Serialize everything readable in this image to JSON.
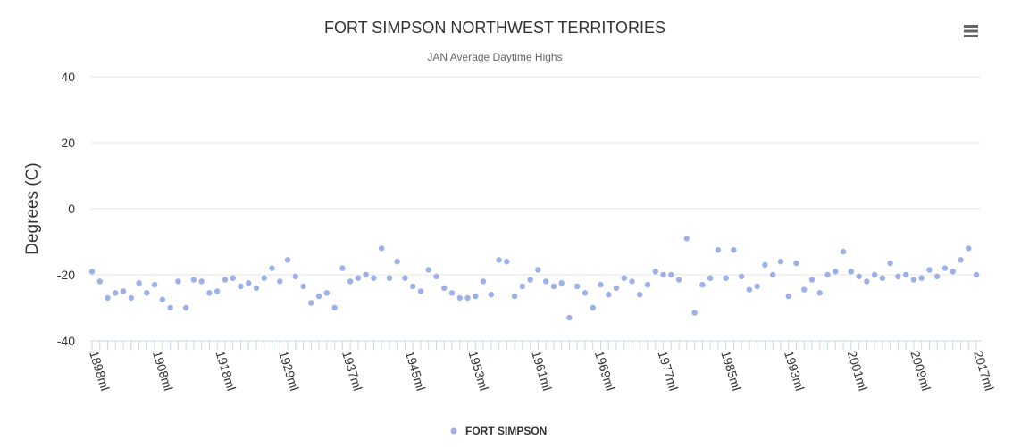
{
  "chart_data": {
    "type": "scatter",
    "title": "FORT SIMPSON NORTHWEST TERRITORIES",
    "subtitle": "JAN Average Daytime Highs",
    "ylabel": "Degrees (C)",
    "xlabel": "",
    "ylim": [
      -40,
      40
    ],
    "yticks": [
      40,
      20,
      0,
      -20,
      -40
    ],
    "grid": true,
    "legend_position": "bottom-center",
    "xtick_labels": [
      "1898ml",
      "1908ml",
      "1918ml",
      "1929ml",
      "1937ml",
      "1945ml",
      "1953ml",
      "1961ml",
      "1969ml",
      "1977ml",
      "1985ml",
      "1993ml",
      "2001ml",
      "2009ml",
      "2017ml"
    ],
    "color": "#9db0e8",
    "series": [
      {
        "name": "FORT SIMPSON",
        "values": [
          -19,
          -22,
          -27,
          -25.5,
          -25,
          -27,
          -22.5,
          -25.5,
          -23,
          -27.5,
          -30,
          -22,
          -30,
          -21.5,
          -22,
          -25.5,
          -25,
          -21.5,
          -21,
          -23.5,
          -22.5,
          -24,
          -21,
          -18,
          -22,
          -15.5,
          -20.5,
          -23.5,
          -28.5,
          -26.5,
          -25.5,
          -30,
          -18,
          -22,
          -21,
          -20,
          -21,
          -12,
          -21,
          -16,
          -21,
          -23.5,
          -25,
          -18.5,
          -20.5,
          -24,
          -25.5,
          -27,
          -27,
          -26.5,
          -22,
          -26,
          -15.5,
          -16,
          -26.5,
          -23.5,
          -21.5,
          -18.5,
          -22,
          -23.5,
          -22.5,
          -33,
          -23.5,
          -25.5,
          -30,
          -23,
          -26,
          -24,
          -21,
          -22,
          -26,
          -23,
          -19,
          -20,
          -20,
          -21.5,
          -9,
          -31.5,
          -23,
          -21,
          -12.5,
          -21,
          -12.5,
          -20.5,
          -24.5,
          -23.5,
          -17,
          -20,
          -16,
          -26.5,
          -16.5,
          -24.5,
          -21.5,
          -25.5,
          -20,
          -19,
          -13,
          -19,
          -20.5,
          -22,
          -20,
          -21,
          -16.5,
          -20.5,
          -20,
          -21.5,
          -21,
          -18.5,
          -20.5,
          -18,
          -19,
          -15.5,
          -12,
          -20
        ]
      }
    ]
  },
  "toolbar": {
    "menu_icon": "hamburger-menu-icon"
  }
}
